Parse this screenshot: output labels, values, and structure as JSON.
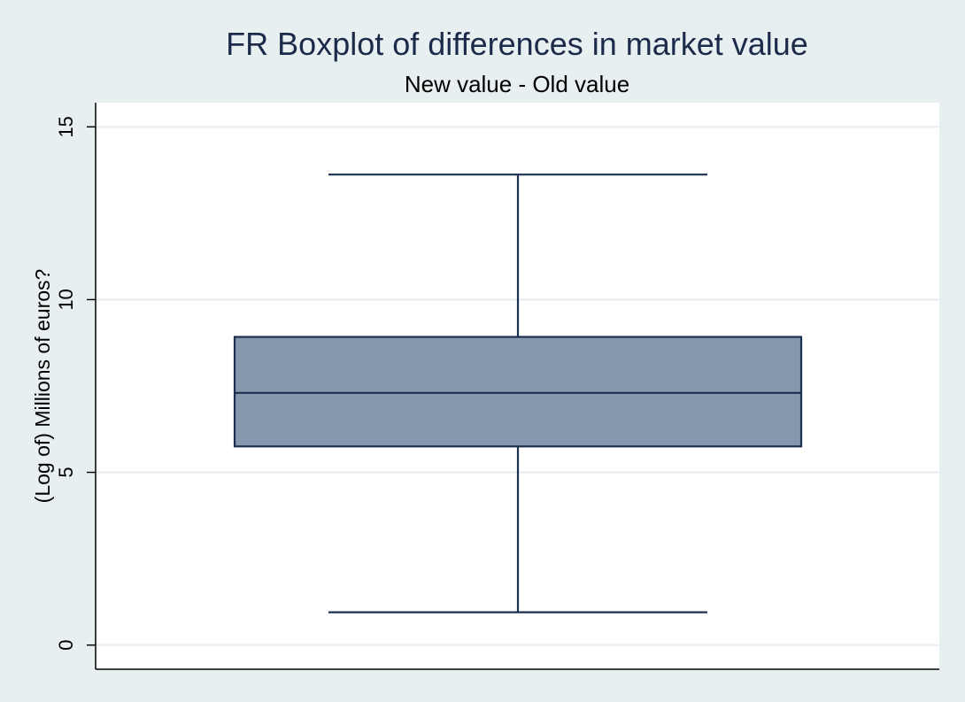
{
  "chart_data": {
    "type": "box",
    "title": "FR Boxplot of differences in market value",
    "subtitle": "New value - Old value",
    "xlabel": "",
    "ylabel": "(Log of) Millions of euros?",
    "ylim": [
      -0.7,
      15.7
    ],
    "yticks": [
      0,
      5,
      10,
      15
    ],
    "grid": true,
    "box": {
      "lower_whisker": 0.95,
      "q1": 5.75,
      "median": 7.3,
      "q3": 8.92,
      "upper_whisker": 13.62
    },
    "colors": {
      "background": "#e8eff1",
      "plot_area": "#ffffff",
      "box_fill": "#8598ae",
      "box_outline": "#1b3050",
      "title": "#1c2b4a"
    }
  }
}
